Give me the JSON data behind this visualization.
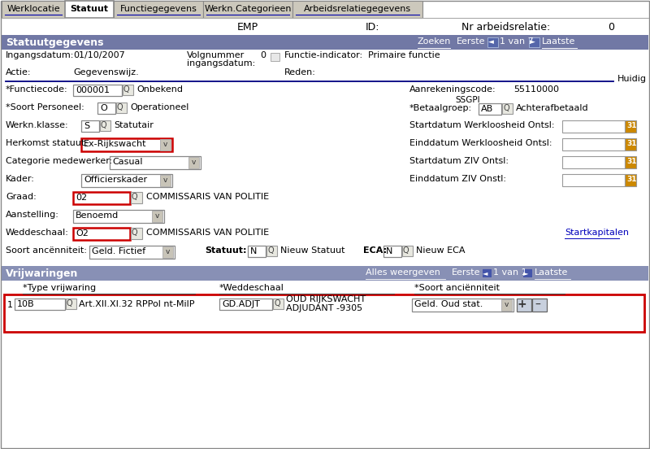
{
  "tabs": [
    "Werklocatie",
    "Statuut",
    "Functiegegevens",
    "Werkn.Categorieen",
    "Arbeidsrelatiegegevens"
  ],
  "active_tab": 1,
  "emp": "EMP",
  "id_label": "ID:",
  "nr_label": "Nr arbeidsrelatie:",
  "nr_value": "0",
  "section1_title": "Statuutgegevens",
  "huidig": "Huidig",
  "section2_title": "Vrijwaringen",
  "vrijwaring_headers": [
    "*Type vrijwaring",
    "*Weddeschaal",
    "*Soort anciënniteit"
  ],
  "vrijwaring_num": "1",
  "vrijwaring_type_field": "10B",
  "vrijwaring_type_desc": "Art.XII.XI.32 RPPol nt-MilP",
  "vrijwaring_wedde_field": "GD.ADJT",
  "vrijwaring_wedde_desc1": "OUD RIJKSWACHT",
  "vrijwaring_wedde_desc2": "ADJUDANT -9305",
  "vrijwaring_anc_field": "Geld. Oud stat.",
  "bg_color": "#ffffff",
  "tab_bg": "#ccc8bc",
  "active_tab_bg": "#ffffff",
  "section_header_bg": "#7178a5",
  "section_header_fg": "#ffffff",
  "vrijwaring_header_bg": "#8890b5",
  "red_border_color": "#cc0000",
  "link_color": "#0000bb",
  "line_color": "#000080",
  "date_btn_color": "#cc8800",
  "search_bg": "#e8e8e0",
  "dropdown_arrow_bg": "#c8c4b8",
  "field_border": "#888888",
  "note_bg": "#fffbe6"
}
